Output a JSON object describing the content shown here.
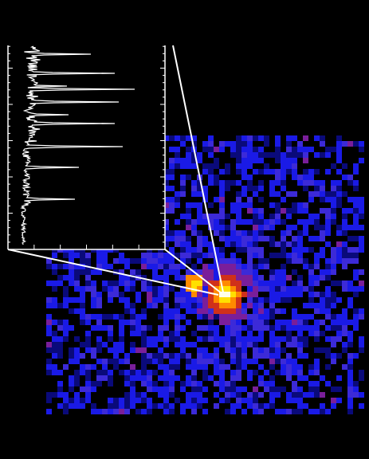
{
  "image": {
    "background_color": "#000000",
    "colormap": [
      "#000000",
      "#0a0a7a",
      "#1a1ae6",
      "#3c2ad8",
      "#7a1e9a",
      "#d0301a",
      "#ff8a00",
      "#ffe000",
      "#ffffe6"
    ],
    "inset_line_color": "#ffffff",
    "spectrum_color": "#ffffff"
  }
}
